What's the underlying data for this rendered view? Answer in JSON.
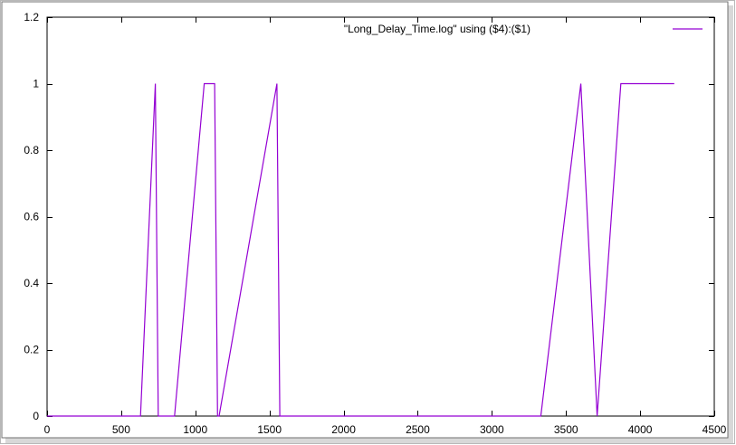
{
  "chart_data": {
    "type": "line",
    "title": "",
    "xlabel": "",
    "ylabel": "",
    "xlim": [
      0,
      4500
    ],
    "ylim": [
      0,
      1.2
    ],
    "x_ticks": [
      0,
      500,
      1000,
      1500,
      2000,
      2500,
      3000,
      3500,
      4000,
      4500
    ],
    "y_ticks": [
      0,
      0.2,
      0.4,
      0.6,
      0.8,
      1,
      1.2
    ],
    "x_tick_labels": [
      "0",
      "500",
      "1000",
      "1500",
      "2000",
      "2500",
      "3000",
      "3500",
      "4000",
      "4500"
    ],
    "y_tick_labels": [
      "0",
      "0.2",
      "0.4",
      "0.6",
      "0.8",
      "1",
      "1.2"
    ],
    "grid": false,
    "legend_position": "top-right",
    "series": [
      {
        "name": "\"Long_Delay_Time.log\" using ($4):($1)",
        "color": "#9400d3",
        "points": [
          [
            0,
            0
          ],
          [
            630,
            0
          ],
          [
            730,
            1
          ],
          [
            750,
            0
          ],
          [
            860,
            0
          ],
          [
            1060,
            1
          ],
          [
            1130,
            1
          ],
          [
            1150,
            0
          ],
          [
            1160,
            0
          ],
          [
            1550,
            1
          ],
          [
            1570,
            0
          ],
          [
            3330,
            0
          ],
          [
            3600,
            1
          ],
          [
            3710,
            0
          ],
          [
            3870,
            1
          ],
          [
            4230,
            1
          ]
        ]
      }
    ]
  }
}
